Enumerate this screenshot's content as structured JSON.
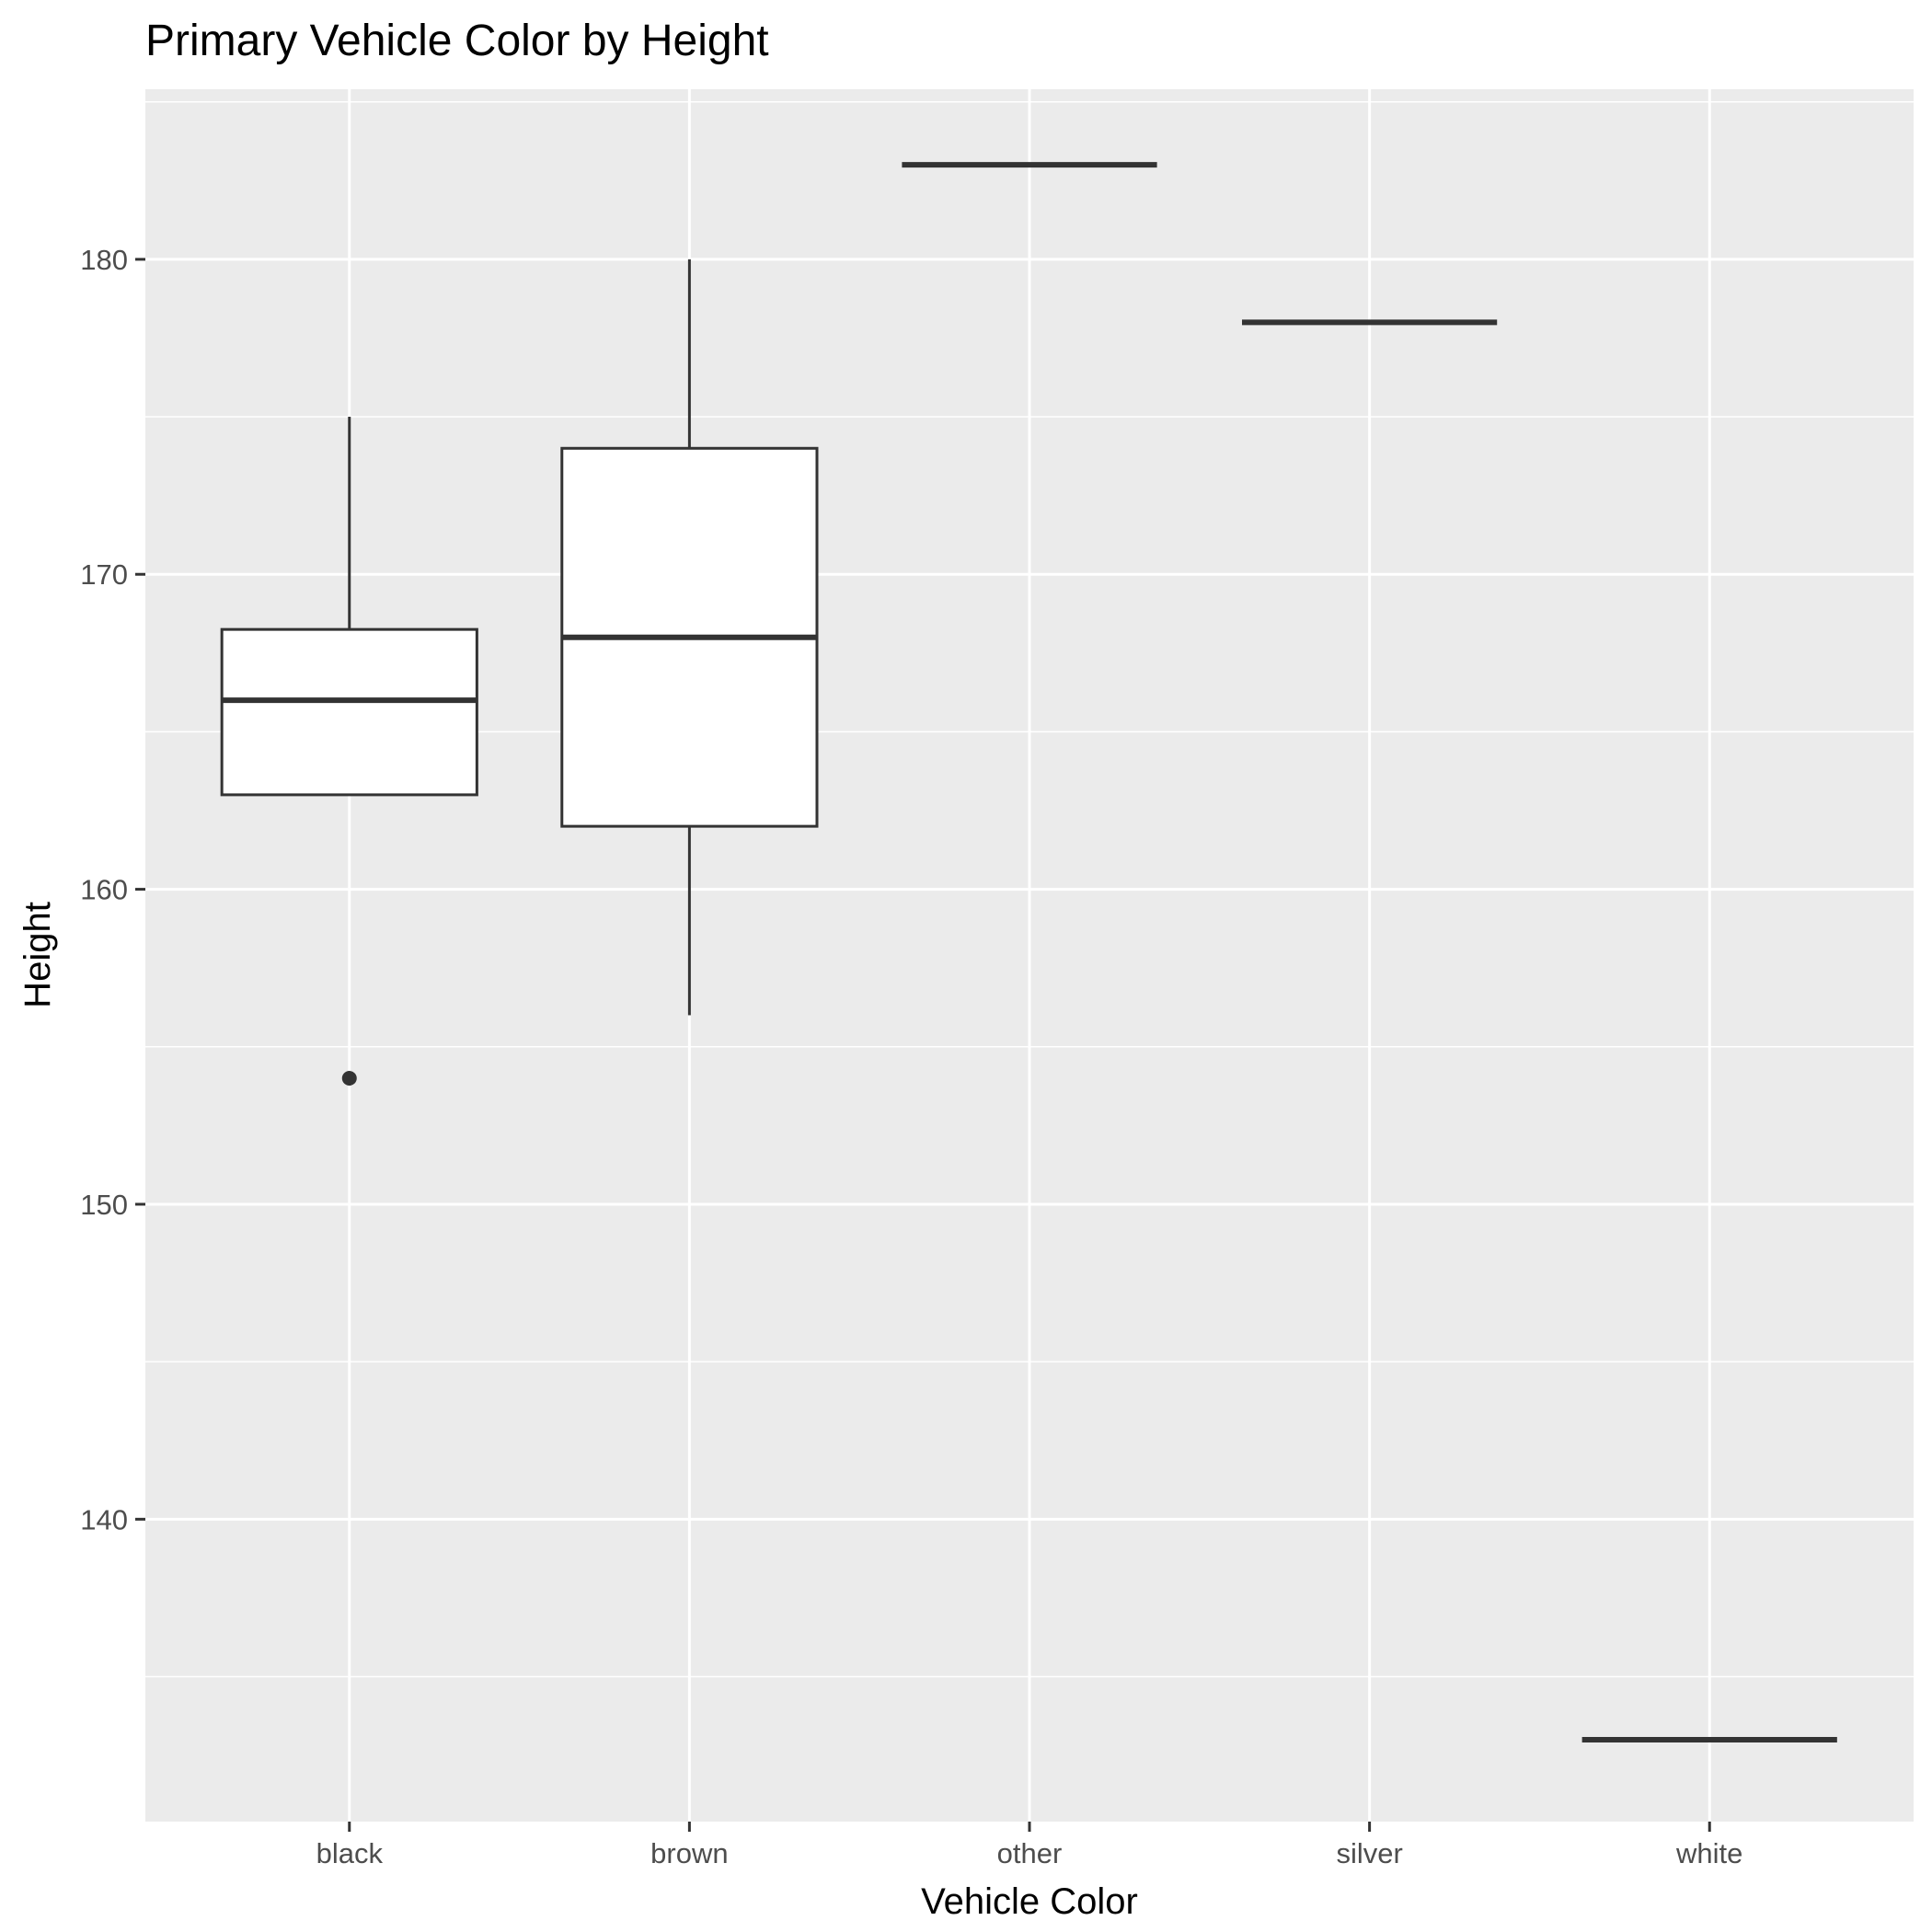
{
  "chart_data": {
    "type": "boxplot",
    "title": "Primary Vehicle Color by Height",
    "xlabel": "Vehicle Color",
    "ylabel": "Height",
    "categories": [
      "black",
      "brown",
      "other",
      "silver",
      "white"
    ],
    "ylim": [
      130.4,
      185.4
    ],
    "yticks": [
      140,
      150,
      160,
      170,
      180
    ],
    "yticks_minor": [
      135,
      145,
      155,
      165,
      175,
      185
    ],
    "ytick_labels": [
      "140",
      "150",
      "160",
      "170",
      "180"
    ],
    "grid": true,
    "boxes": [
      {
        "category": "black",
        "min": 163,
        "q1": 163,
        "median": 166,
        "q3": 168.25,
        "max": 175,
        "outliers": [
          154
        ]
      },
      {
        "category": "brown",
        "min": 156,
        "q1": 162,
        "median": 168,
        "q3": 174,
        "max": 180,
        "outliers": []
      },
      {
        "category": "other",
        "min": 183,
        "q1": 183,
        "median": 183,
        "q3": 183,
        "max": 183,
        "outliers": []
      },
      {
        "category": "silver",
        "min": 178,
        "q1": 178,
        "median": 178,
        "q3": 178,
        "max": 178,
        "outliers": []
      },
      {
        "category": "white",
        "min": 133,
        "q1": 133,
        "median": 133,
        "q3": 133,
        "max": 133,
        "outliers": []
      }
    ],
    "colors": {
      "panel": "#ebebeb",
      "grid": "#ffffff",
      "box_fill": "#ffffff",
      "box_line": "#333333",
      "tick": "#333333"
    }
  }
}
